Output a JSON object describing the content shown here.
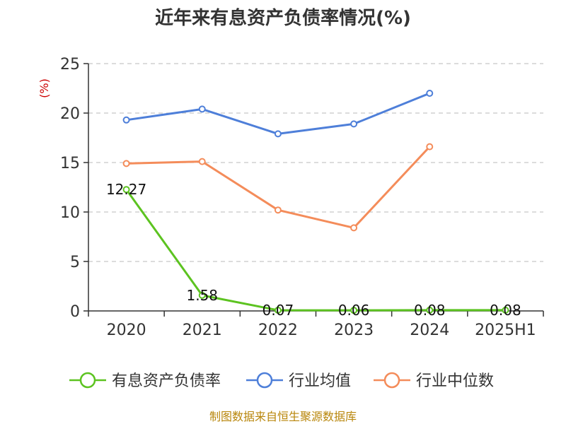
{
  "chart_data": {
    "type": "line",
    "title": "近年来有息资产负债率情况(%)",
    "ylabel": "(%)",
    "xlabel": "",
    "categories": [
      "2020",
      "2021",
      "2022",
      "2023",
      "2024",
      "2025H1"
    ],
    "ylim": [
      0,
      25
    ],
    "yticks": [
      0,
      5,
      10,
      15,
      20,
      25
    ],
    "grid": true,
    "legend_position": "bottom",
    "series": [
      {
        "name": "有息资产负债率",
        "color": "#5cc320",
        "values": [
          12.27,
          1.58,
          0.07,
          0.06,
          0.08,
          0.08
        ],
        "labels": [
          "12.27",
          "1.58",
          "0.07",
          "0.06",
          "0.08",
          "0.08"
        ]
      },
      {
        "name": "行业均值",
        "color": "#4e7fd9",
        "values": [
          19.3,
          20.4,
          17.9,
          18.9,
          22.0,
          null
        ]
      },
      {
        "name": "行业中位数",
        "color": "#f48c5a",
        "values": [
          14.9,
          15.1,
          10.2,
          8.4,
          16.6,
          null
        ]
      }
    ]
  },
  "source": "制图数据来自恒生聚源数据库"
}
